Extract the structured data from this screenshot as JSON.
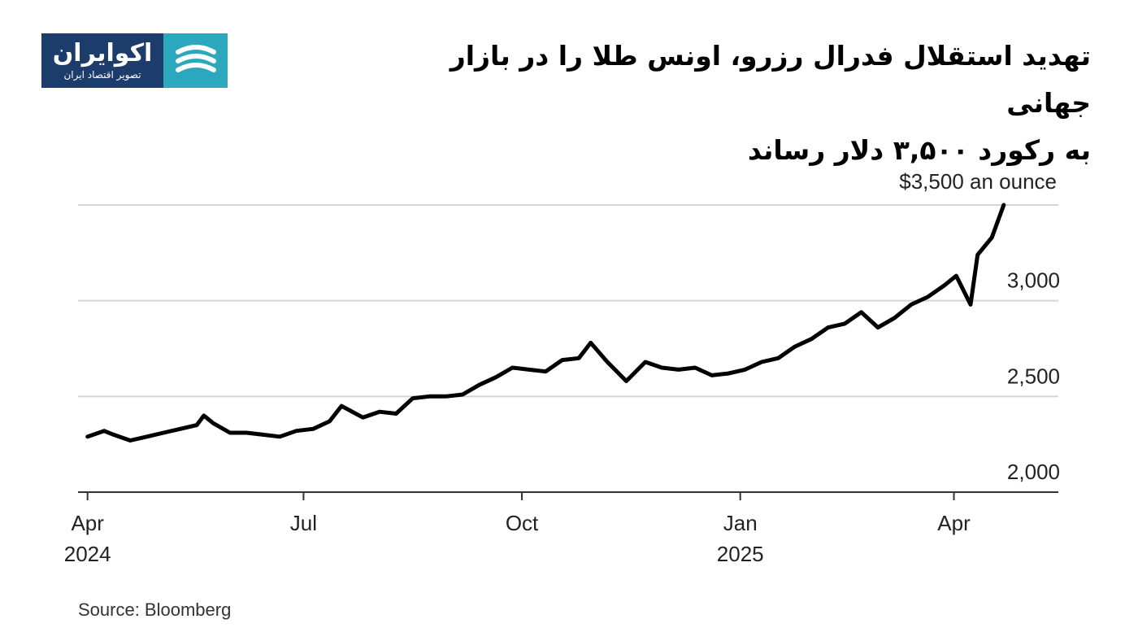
{
  "logo": {
    "name": "اکوایران",
    "tagline": "تصویر اقتصاد ایران",
    "mark_icon": "wave-stripes-icon",
    "colors": {
      "text_bg": "#1c3d6b",
      "mark_bg": "#2ba7be"
    }
  },
  "title": {
    "line1": "تهدید استقلال فدرال رزرو، اونس طلا را در بازار جهانی",
    "line2": "به رکورد ۳,۵۰۰ دلار رساند"
  },
  "source": "Source: Bloomberg",
  "chart_data": {
    "type": "line",
    "unit_label": "$3,500 an ounce",
    "ylim": [
      2000,
      3500
    ],
    "y_ticks": [
      {
        "value": 2000,
        "label": "2,000"
      },
      {
        "value": 2500,
        "label": "2,500"
      },
      {
        "value": 3000,
        "label": "3,000"
      },
      {
        "value": 3500,
        "label": ""
      }
    ],
    "x_start": "2024-03-28",
    "x_end": "2025-05-15",
    "x_ticks": [
      {
        "date": "2024-04-01",
        "label": "Apr",
        "sublabel": "2024"
      },
      {
        "date": "2024-07-01",
        "label": "Jul",
        "sublabel": ""
      },
      {
        "date": "2024-10-01",
        "label": "Oct",
        "sublabel": ""
      },
      {
        "date": "2025-01-01",
        "label": "Jan",
        "sublabel": "2025"
      },
      {
        "date": "2025-04-01",
        "label": "Apr",
        "sublabel": ""
      }
    ],
    "grid": true,
    "color": "#000000",
    "series": [
      {
        "points": [
          [
            "2024-04-01",
            2290
          ],
          [
            "2024-04-08",
            2320
          ],
          [
            "2024-04-12",
            2300
          ],
          [
            "2024-04-19",
            2270
          ],
          [
            "2024-04-26",
            2290
          ],
          [
            "2024-05-03",
            2310
          ],
          [
            "2024-05-10",
            2330
          ],
          [
            "2024-05-17",
            2350
          ],
          [
            "2024-05-20",
            2400
          ],
          [
            "2024-05-24",
            2360
          ],
          [
            "2024-05-31",
            2310
          ],
          [
            "2024-06-07",
            2310
          ],
          [
            "2024-06-14",
            2300
          ],
          [
            "2024-06-21",
            2290
          ],
          [
            "2024-06-28",
            2320
          ],
          [
            "2024-07-05",
            2330
          ],
          [
            "2024-07-12",
            2370
          ],
          [
            "2024-07-17",
            2450
          ],
          [
            "2024-07-26",
            2390
          ],
          [
            "2024-08-02",
            2420
          ],
          [
            "2024-08-09",
            2410
          ],
          [
            "2024-08-16",
            2490
          ],
          [
            "2024-08-23",
            2500
          ],
          [
            "2024-08-30",
            2500
          ],
          [
            "2024-09-06",
            2510
          ],
          [
            "2024-09-13",
            2560
          ],
          [
            "2024-09-20",
            2600
          ],
          [
            "2024-09-27",
            2650
          ],
          [
            "2024-10-04",
            2640
          ],
          [
            "2024-10-11",
            2630
          ],
          [
            "2024-10-18",
            2690
          ],
          [
            "2024-10-25",
            2700
          ],
          [
            "2024-10-30",
            2780
          ],
          [
            "2024-11-06",
            2680
          ],
          [
            "2024-11-14",
            2580
          ],
          [
            "2024-11-22",
            2680
          ],
          [
            "2024-11-29",
            2650
          ],
          [
            "2024-12-06",
            2640
          ],
          [
            "2024-12-13",
            2650
          ],
          [
            "2024-12-20",
            2610
          ],
          [
            "2024-12-27",
            2620
          ],
          [
            "2025-01-03",
            2640
          ],
          [
            "2025-01-10",
            2680
          ],
          [
            "2025-01-17",
            2700
          ],
          [
            "2025-01-24",
            2760
          ],
          [
            "2025-01-31",
            2800
          ],
          [
            "2025-02-07",
            2860
          ],
          [
            "2025-02-14",
            2880
          ],
          [
            "2025-02-21",
            2940
          ],
          [
            "2025-02-28",
            2860
          ],
          [
            "2025-03-07",
            2910
          ],
          [
            "2025-03-14",
            2980
          ],
          [
            "2025-03-21",
            3020
          ],
          [
            "2025-03-28",
            3080
          ],
          [
            "2025-04-02",
            3130
          ],
          [
            "2025-04-08",
            2980
          ],
          [
            "2025-04-11",
            3240
          ],
          [
            "2025-04-17",
            3330
          ],
          [
            "2025-04-22",
            3500
          ]
        ]
      }
    ]
  }
}
